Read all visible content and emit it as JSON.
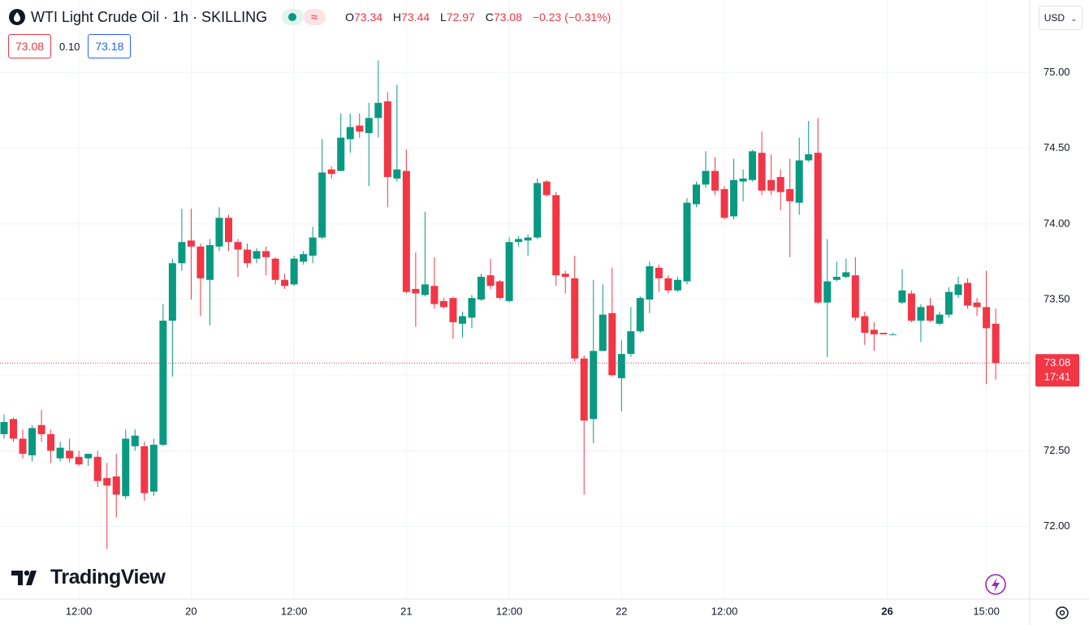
{
  "chart_data": {
    "type": "candlestick",
    "title": "WTI Light Crude Oil · 1h · SKILLING",
    "ohlc_labels": [
      "O",
      "H",
      "L",
      "C"
    ],
    "change": "−0.23 (−0.31%)",
    "quote": {
      "bid": "73.08",
      "spread": "0.10",
      "ask": "73.18"
    },
    "currency": "USD",
    "countdown": "17:41",
    "brand": "TradingView",
    "up_color": "#089981",
    "down_color": "#f23645",
    "open": [
      72.61,
      72.71,
      72.58,
      72.47,
      72.67,
      72.61,
      72.45,
      72.5,
      72.46,
      72.45,
      72.46,
      72.32,
      72.33,
      72.2,
      72.53,
      72.53,
      72.23,
      72.54,
      73.36,
      73.74,
      73.89,
      73.85,
      73.63,
      73.85,
      74.04,
      73.88,
      73.83,
      73.77,
      73.82,
      73.77,
      73.63,
      73.6,
      73.75,
      73.79,
      73.91,
      74.36,
      74.35,
      74.56,
      74.65,
      74.6,
      74.7,
      74.81,
      74.3,
      74.35,
      73.57,
      73.53,
      73.59,
      73.49,
      73.51,
      73.34,
      73.38,
      73.5,
      73.66,
      73.62,
      73.49,
      73.88,
      73.89,
      73.91,
      74.28,
      74.19,
      73.67,
      73.64,
      73.11,
      72.71,
      73.16,
      73.41,
      72.98,
      73.14,
      73.29,
      73.5,
      73.71,
      73.64,
      73.56,
      73.62,
      74.13,
      74.26,
      74.35,
      74.23,
      74.05,
      74.28,
      74.29,
      74.47,
      74.29,
      74.31,
      74.23,
      74.14,
      74.42,
      74.47,
      73.48,
      73.63,
      73.65,
      73.66,
      73.39,
      73.3,
      73.28,
      73.27,
      73.48,
      73.54,
      73.36,
      73.46,
      73.34,
      73.4,
      73.53,
      73.61,
      73.48,
      73.45,
      73.34
    ],
    "high": [
      72.74,
      72.72,
      72.64,
      72.67,
      72.77,
      72.64,
      72.56,
      72.58,
      72.5,
      72.48,
      72.5,
      72.42,
      72.48,
      72.64,
      72.64,
      72.56,
      72.58,
      73.47,
      73.77,
      74.1,
      74.1,
      73.87,
      73.9,
      74.11,
      74.06,
      73.9,
      73.87,
      73.84,
      73.85,
      73.78,
      73.67,
      73.79,
      73.82,
      73.98,
      74.56,
      74.38,
      74.73,
      74.73,
      74.73,
      74.8,
      75.08,
      74.87,
      74.92,
      74.49,
      73.81,
      74.08,
      73.78,
      73.51,
      73.52,
      73.42,
      73.53,
      73.67,
      73.77,
      73.63,
      73.91,
      73.92,
      73.93,
      74.3,
      74.29,
      74.21,
      73.69,
      73.79,
      73.13,
      73.63,
      73.6,
      73.71,
      73.23,
      73.45,
      73.52,
      73.75,
      73.73,
      73.66,
      73.65,
      74.17,
      74.28,
      74.48,
      74.44,
      74.25,
      74.43,
      74.36,
      74.49,
      74.61,
      74.46,
      74.36,
      74.43,
      74.57,
      74.68,
      74.7,
      73.9,
      73.75,
      73.77,
      73.78,
      73.42,
      73.35,
      73.28,
      73.28,
      73.7,
      73.56,
      73.47,
      73.51,
      73.42,
      73.58,
      73.65,
      73.64,
      73.51,
      73.69,
      73.44
    ],
    "low": [
      72.58,
      72.56,
      72.45,
      72.43,
      72.56,
      72.42,
      72.43,
      72.42,
      72.4,
      72.4,
      72.26,
      71.85,
      72.06,
      72.18,
      72.5,
      72.17,
      72.2,
      72.53,
      72.99,
      73.69,
      73.5,
      73.39,
      73.33,
      73.82,
      73.82,
      73.65,
      73.71,
      73.74,
      73.66,
      73.6,
      73.57,
      73.59,
      73.73,
      73.74,
      73.9,
      74.3,
      74.35,
      74.47,
      74.57,
      74.25,
      74.57,
      74.11,
      74.28,
      73.54,
      73.32,
      73.52,
      73.44,
      73.44,
      73.24,
      73.25,
      73.31,
      73.49,
      73.57,
      73.5,
      73.48,
      73.85,
      73.79,
      73.9,
      74.18,
      73.59,
      73.54,
      73.09,
      72.21,
      72.55,
      73.16,
      72.99,
      72.76,
      73.12,
      73.28,
      73.41,
      73.55,
      73.54,
      73.55,
      73.6,
      74.11,
      74.24,
      74.19,
      74.03,
      74.03,
      74.15,
      74.28,
      74.19,
      74.19,
      74.09,
      73.78,
      74.06,
      74.41,
      73.47,
      73.12,
      73.62,
      73.64,
      73.36,
      73.2,
      73.16,
      73.27,
      73.27,
      73.47,
      73.35,
      73.22,
      73.35,
      73.33,
      73.38,
      73.51,
      73.44,
      73.39,
      72.94,
      72.97
    ],
    "close": [
      72.69,
      72.58,
      72.48,
      72.65,
      72.61,
      72.5,
      72.52,
      72.45,
      72.41,
      72.48,
      72.3,
      72.27,
      72.21,
      72.58,
      72.6,
      72.22,
      72.54,
      73.36,
      73.74,
      73.88,
      73.85,
      73.64,
      73.86,
      74.04,
      73.88,
      73.83,
      73.74,
      73.82,
      73.78,
      73.63,
      73.59,
      73.77,
      73.8,
      73.91,
      74.34,
      74.33,
      74.57,
      74.64,
      74.61,
      74.7,
      74.8,
      74.31,
      74.36,
      73.55,
      73.54,
      73.6,
      73.47,
      73.45,
      73.35,
      73.39,
      73.51,
      73.65,
      73.59,
      73.51,
      73.88,
      73.9,
      73.91,
      74.27,
      74.19,
      73.66,
      73.65,
      73.11,
      72.7,
      73.16,
      73.4,
      73.0,
      73.14,
      73.29,
      73.51,
      73.72,
      73.64,
      73.56,
      73.63,
      74.14,
      74.26,
      74.35,
      74.22,
      74.04,
      74.29,
      74.3,
      74.48,
      74.22,
      74.22,
      74.21,
      74.15,
      74.42,
      74.46,
      73.48,
      73.62,
      73.65,
      73.68,
      73.38,
      73.28,
      73.27,
      73.27,
      73.27,
      73.56,
      73.36,
      73.45,
      73.36,
      73.4,
      73.55,
      73.6,
      73.46,
      73.45,
      73.31,
      73.08
    ],
    "ylim": [
      71.52,
      75.48
    ],
    "yticks": [
      {
        "value": 72,
        "label": "72.00"
      },
      {
        "value": 72.5,
        "label": "72.50"
      },
      {
        "value": 73,
        "label": "73.00"
      },
      {
        "value": 73.5,
        "label": "73.50"
      },
      {
        "value": 74,
        "label": "74.00"
      },
      {
        "value": 74.5,
        "label": "74.50"
      },
      {
        "value": 75,
        "label": "75.00"
      }
    ],
    "xticks": [
      {
        "value": 8,
        "label": "12:00"
      },
      {
        "value": 20,
        "label": "20"
      },
      {
        "value": 31,
        "label": "12:00"
      },
      {
        "value": 43,
        "label": "21"
      },
      {
        "value": 54,
        "label": "12:00"
      },
      {
        "value": 66,
        "label": "22"
      },
      {
        "value": 77,
        "label": "12:00"
      },
      {
        "value": 94.4,
        "label": "26"
      },
      {
        "value": 105,
        "label": "15:00"
      }
    ],
    "grid": true
  }
}
